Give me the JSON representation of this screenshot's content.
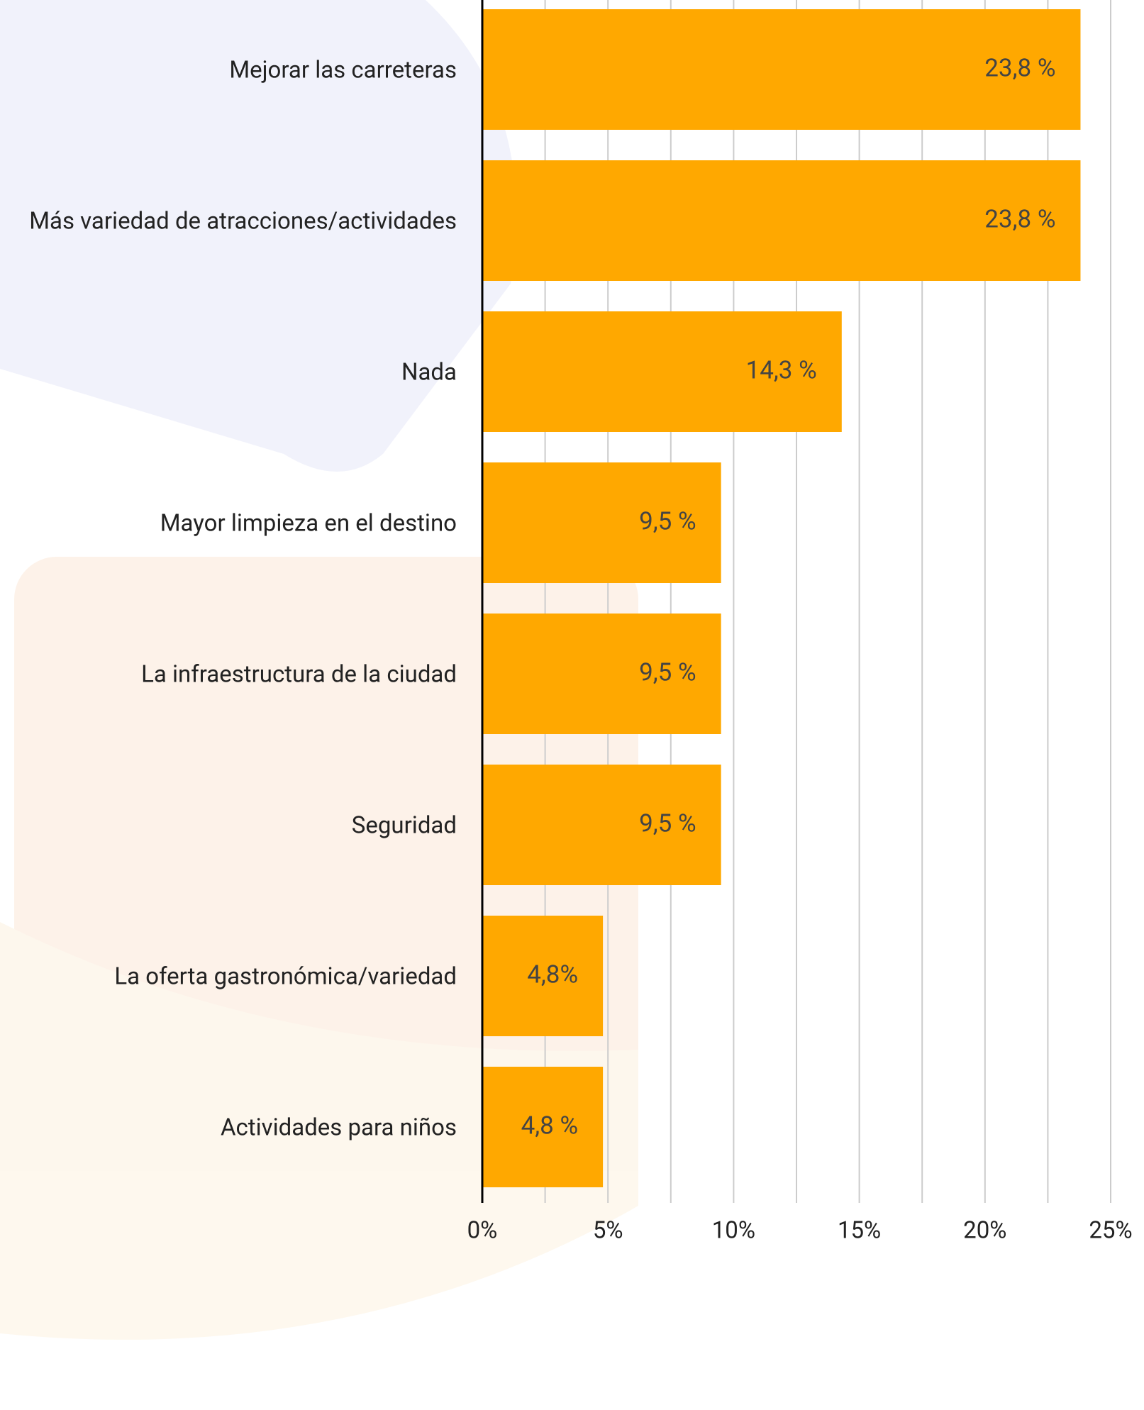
{
  "chart_data": {
    "type": "bar",
    "orientation": "horizontal",
    "categories": [
      "Mejorar las carreteras",
      "Más variedad de atracciones/actividades",
      "Nada",
      "Mayor limpieza en el destino",
      "La infraestructura de la ciudad",
      "Seguridad",
      "La oferta gastronómica/variedad",
      "Actividades para niños"
    ],
    "values": [
      23.8,
      23.8,
      14.3,
      9.5,
      9.5,
      9.5,
      4.8,
      4.8
    ],
    "value_labels": [
      "23,8 %",
      "23,8 %",
      "14,3 %",
      "9,5 %",
      "9,5 %",
      "9,5 %",
      "4,8%",
      "4,8 %"
    ],
    "color": "#ffa800",
    "xlim": [
      0,
      25
    ],
    "xticks": [
      {
        "value": 0,
        "label": "0%"
      },
      {
        "value": 5,
        "label": "5%"
      },
      {
        "value": 10,
        "label": "10%"
      },
      {
        "value": 15,
        "label": "15%"
      },
      {
        "value": 20,
        "label": "20%"
      },
      {
        "value": 25,
        "label": "25%"
      }
    ],
    "x_minor_gridlines": [
      2.5,
      7.5,
      12.5,
      17.5,
      22.5
    ],
    "grid": true
  }
}
